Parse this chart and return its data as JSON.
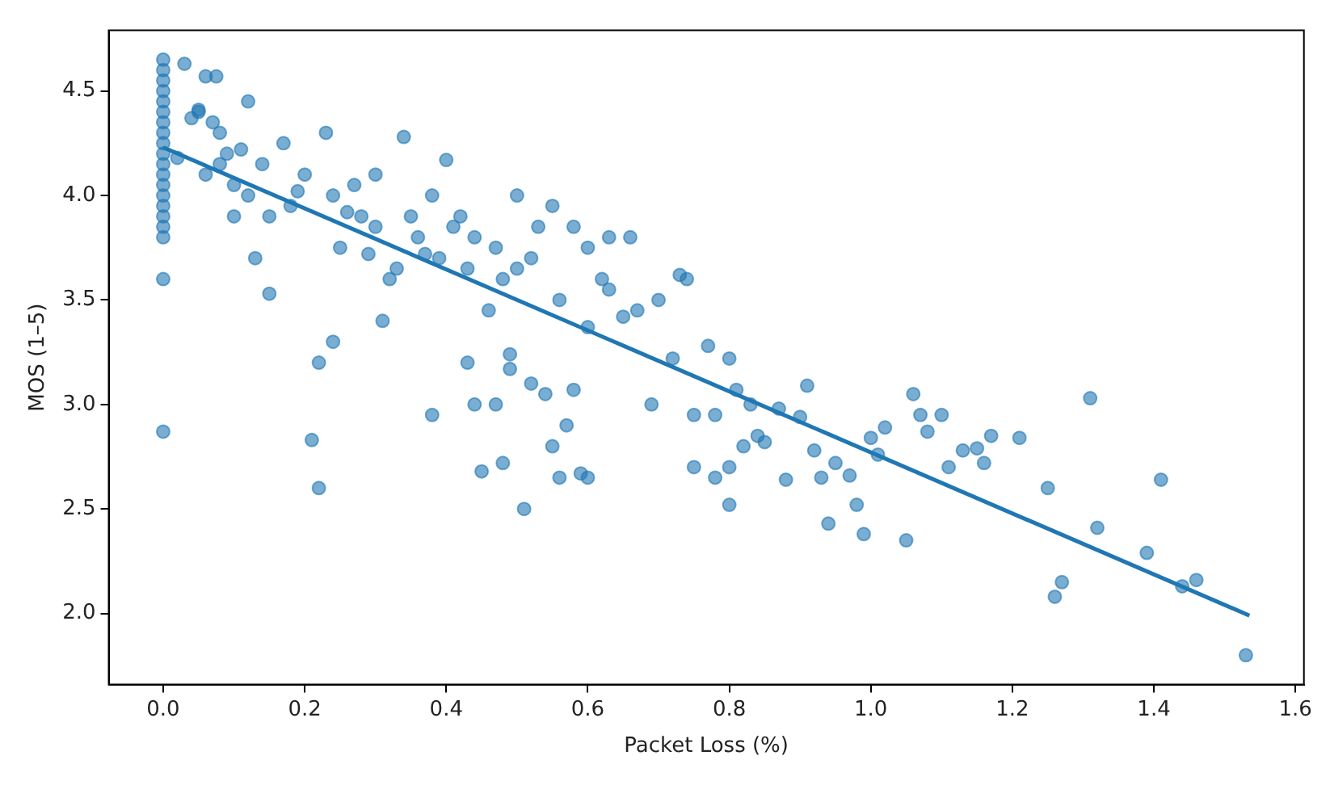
{
  "chart_data": {
    "type": "scatter",
    "xlabel": "Packet Loss (%)",
    "ylabel": "MOS (1–5)",
    "xlim": [
      -0.077,
      1.612
    ],
    "ylim": [
      1.66,
      4.79
    ],
    "xticks": [
      {
        "value": 0,
        "label": "0.0"
      },
      {
        "value": 0.2,
        "label": "0.2"
      },
      {
        "value": 0.4,
        "label": "0.4"
      },
      {
        "value": 0.6,
        "label": "0.6"
      },
      {
        "value": 0.8,
        "label": "0.8"
      },
      {
        "value": 1,
        "label": "1.0"
      },
      {
        "value": 1.2,
        "label": "1.2"
      },
      {
        "value": 1.4,
        "label": "1.4"
      },
      {
        "value": 1.6,
        "label": "1.6"
      }
    ],
    "yticks": [
      {
        "value": 2,
        "label": "2.0"
      },
      {
        "value": 2.5,
        "label": "2.5"
      },
      {
        "value": 3,
        "label": "3.0"
      },
      {
        "value": 3.5,
        "label": "3.5"
      },
      {
        "value": 4,
        "label": "4.0"
      },
      {
        "value": 4.5,
        "label": "4.5"
      }
    ],
    "grid": false,
    "legend": false,
    "series": [
      {
        "marker": "circle",
        "color": "#1f77b4",
        "x": [
          0,
          0,
          0,
          0,
          0,
          0,
          0,
          0,
          0,
          0,
          0,
          0,
          0,
          0,
          0,
          0,
          0,
          0,
          0,
          0,
          0.03,
          0.06,
          0.075,
          0.05,
          0.12,
          0.02,
          0.04,
          0.05,
          0.07,
          0.08,
          0.09,
          0.1,
          0.1,
          0.12,
          0.13,
          0.15,
          0.15,
          0.17,
          0.18,
          0.2,
          0.21,
          0.22,
          0.22,
          0.23,
          0.24,
          0.24,
          0.25,
          0.27,
          0.28,
          0.3,
          0.3,
          0.31,
          0.32,
          0.34,
          0.35,
          0.36,
          0.38,
          0.38,
          0.39,
          0.4,
          0.42,
          0.43,
          0.43,
          0.44,
          0.45,
          0.46,
          0.47,
          0.47,
          0.48,
          0.49,
          0.49,
          0.5,
          0.5,
          0.51,
          0.52,
          0.53,
          0.54,
          0.55,
          0.55,
          0.56,
          0.57,
          0.58,
          0.58,
          0.59,
          0.6,
          0.6,
          0.6,
          0.62,
          0.63,
          0.65,
          0.66,
          0.67,
          0.69,
          0.7,
          0.72,
          0.73,
          0.74,
          0.75,
          0.75,
          0.77,
          0.78,
          0.78,
          0.8,
          0.8,
          0.8,
          0.81,
          0.82,
          0.83,
          0.84,
          0.85,
          0.87,
          0.88,
          0.9,
          0.91,
          0.92,
          0.93,
          0.94,
          0.95,
          0.97,
          0.98,
          0.99,
          1.0,
          1.01,
          1.02,
          1.05,
          1.06,
          1.07,
          1.08,
          1.1,
          1.11,
          1.13,
          1.15,
          1.16,
          1.17,
          1.21,
          1.25,
          1.26,
          1.27,
          1.31,
          1.32,
          1.39,
          1.41,
          1.44,
          1.46,
          1.53,
          0.06,
          0.08,
          0.11,
          0.14,
          0.19,
          0.26,
          0.29,
          0.33,
          0.37,
          0.41,
          0.44,
          0.48,
          0.52,
          0.56,
          0.63
        ],
        "values": [
          4.65,
          4.6,
          4.55,
          4.5,
          4.45,
          4.4,
          4.35,
          4.3,
          4.25,
          4.2,
          4.15,
          4.1,
          4.05,
          4.0,
          3.95,
          3.9,
          3.85,
          3.8,
          3.6,
          2.87,
          4.63,
          4.57,
          4.57,
          4.41,
          4.45,
          4.18,
          4.37,
          4.4,
          4.35,
          4.3,
          4.2,
          4.05,
          3.9,
          4.0,
          3.7,
          3.9,
          3.53,
          4.25,
          3.95,
          4.1,
          2.83,
          3.2,
          2.6,
          4.3,
          3.3,
          4.0,
          3.75,
          4.05,
          3.9,
          3.85,
          4.1,
          3.4,
          3.6,
          4.28,
          3.9,
          3.8,
          4.0,
          2.95,
          3.7,
          4.17,
          3.9,
          3.2,
          3.65,
          3.0,
          2.68,
          3.45,
          3.75,
          3.0,
          2.72,
          3.24,
          3.17,
          4.0,
          3.65,
          2.5,
          3.1,
          3.85,
          3.05,
          3.95,
          2.8,
          2.65,
          2.9,
          3.07,
          3.85,
          2.67,
          2.65,
          3.37,
          3.75,
          3.6,
          3.8,
          3.42,
          3.8,
          3.45,
          3.0,
          3.5,
          3.22,
          3.62,
          3.6,
          2.95,
          2.7,
          3.28,
          2.95,
          2.65,
          2.52,
          2.7,
          3.22,
          3.07,
          2.8,
          3.0,
          2.85,
          2.82,
          2.98,
          2.64,
          2.94,
          3.09,
          2.78,
          2.65,
          2.43,
          2.72,
          2.66,
          2.52,
          2.38,
          2.84,
          2.76,
          2.89,
          2.35,
          3.05,
          2.95,
          2.87,
          2.95,
          2.7,
          2.78,
          2.79,
          2.72,
          2.85,
          2.84,
          2.6,
          2.08,
          2.15,
          3.03,
          2.41,
          2.29,
          2.64,
          2.13,
          2.16,
          1.8,
          4.1,
          4.15,
          4.22,
          4.15,
          4.02,
          3.92,
          3.72,
          3.65,
          3.72,
          3.85,
          3.8,
          3.6,
          3.7,
          3.5,
          3.55
        ]
      },
      {
        "type": "line",
        "color": "#1f77b4",
        "x": [
          0,
          1.535
        ],
        "values": [
          4.23,
          1.99
        ]
      }
    ]
  }
}
